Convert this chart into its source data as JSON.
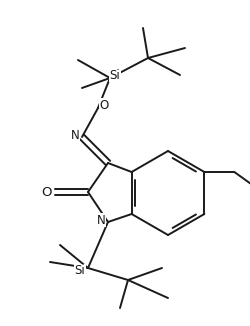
{
  "bg_color": "#ffffff",
  "line_color": "#1a1a1a",
  "lw": 1.4,
  "fontsize": 8.5,
  "figsize": [
    2.51,
    3.26
  ],
  "dpi": 100,
  "xlim": [
    0,
    251
  ],
  "ylim": [
    0,
    326
  ]
}
